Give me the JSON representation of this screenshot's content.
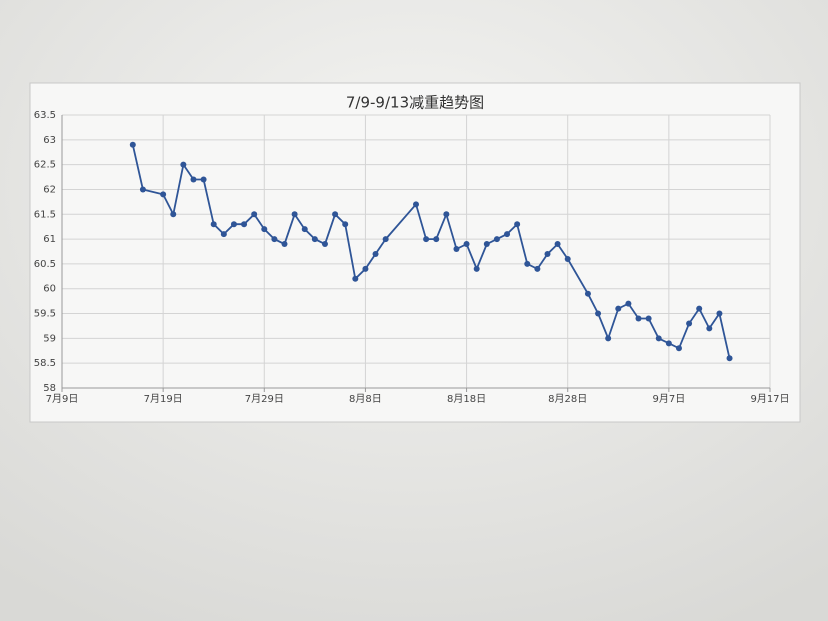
{
  "chart_data": {
    "type": "line",
    "title": "7/9-9/13减重趋势图",
    "x": [
      "07-16",
      "07-17",
      "07-19",
      "07-20",
      "07-21",
      "07-22",
      "07-23",
      "07-24",
      "07-25",
      "07-26",
      "07-27",
      "07-28",
      "07-29",
      "07-30",
      "07-31",
      "08-01",
      "08-02",
      "08-03",
      "08-04",
      "08-05",
      "08-06",
      "08-07",
      "08-08",
      "08-09",
      "08-10",
      "08-13",
      "08-14",
      "08-15",
      "08-16",
      "08-17",
      "08-18",
      "08-19",
      "08-20",
      "08-21",
      "08-22",
      "08-23",
      "08-24",
      "08-25",
      "08-26",
      "08-27",
      "08-28",
      "08-30",
      "08-31",
      "09-01",
      "09-02",
      "09-03",
      "09-04",
      "09-05",
      "09-06",
      "09-07",
      "09-08",
      "09-09",
      "09-10",
      "09-11",
      "09-12",
      "09-13"
    ],
    "values": [
      62.9,
      62.0,
      61.9,
      61.5,
      62.5,
      62.2,
      62.2,
      61.3,
      61.1,
      61.3,
      61.3,
      61.5,
      61.2,
      61.0,
      60.9,
      61.5,
      61.2,
      61.0,
      60.9,
      61.5,
      61.3,
      60.2,
      60.4,
      60.7,
      61.0,
      61.7,
      61.0,
      61.0,
      61.5,
      60.8,
      60.9,
      60.4,
      60.9,
      61.0,
      61.1,
      61.3,
      60.5,
      60.4,
      60.7,
      60.9,
      60.6,
      59.9,
      59.5,
      59.0,
      59.6,
      59.7,
      59.4,
      59.4,
      59.0,
      58.9,
      58.8,
      59.3,
      59.6,
      59.2,
      59.5,
      58.6
    ],
    "color": "#2f5597",
    "xlim": [
      "07-09",
      "09-17"
    ],
    "xticks": [
      {
        "value": "07-09",
        "label": "7月9日"
      },
      {
        "value": "07-19",
        "label": "7月19日"
      },
      {
        "value": "07-29",
        "label": "7月29日"
      },
      {
        "value": "08-08",
        "label": "8月8日"
      },
      {
        "value": "08-18",
        "label": "8月18日"
      },
      {
        "value": "08-28",
        "label": "8月28日"
      },
      {
        "value": "09-07",
        "label": "9月7日"
      },
      {
        "value": "09-17",
        "label": "9月17日"
      }
    ],
    "ylim": [
      58,
      63.5
    ],
    "yticks": [
      58,
      58.5,
      59,
      59.5,
      60,
      60.5,
      61,
      61.5,
      62,
      62.5,
      63,
      63.5
    ],
    "grid": true
  }
}
